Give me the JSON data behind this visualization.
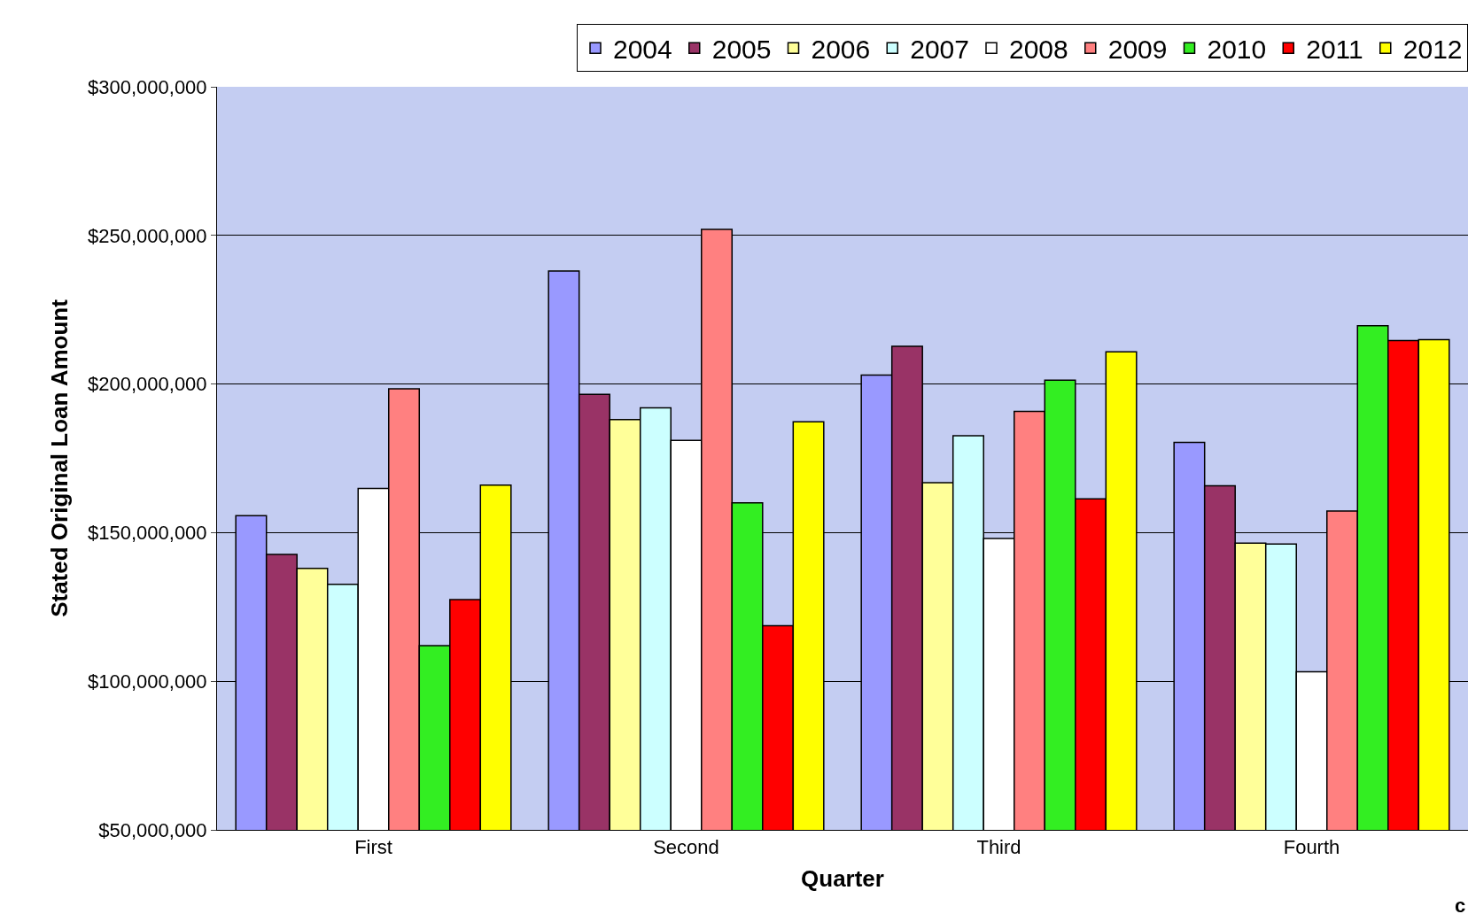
{
  "chart_data": {
    "type": "bar",
    "xlabel": "Quarter",
    "ylabel": "Stated Original Loan Amount",
    "categories": [
      "First",
      "Second",
      "Third",
      "Fourth"
    ],
    "series": [
      {
        "name": "2004",
        "color": "#9999ff",
        "values": [
          155700000,
          238000000,
          203000000,
          180400000
        ]
      },
      {
        "name": "2005",
        "color": "#993366",
        "values": [
          142700000,
          196500000,
          212700000,
          165800000
        ]
      },
      {
        "name": "2006",
        "color": "#ffff99",
        "values": [
          138000000,
          188000000,
          166800000,
          146500000
        ]
      },
      {
        "name": "2007",
        "color": "#ccffff",
        "values": [
          132600000,
          192000000,
          182600000,
          146200000
        ]
      },
      {
        "name": "2008",
        "color": "#ffffff",
        "values": [
          164900000,
          181000000,
          148000000,
          103200000
        ]
      },
      {
        "name": "2009",
        "color": "#ff8080",
        "values": [
          198400000,
          252000000,
          190800000,
          157300000
        ]
      },
      {
        "name": "2010",
        "color": "#33ee22",
        "values": [
          112000000,
          160000000,
          201300000,
          219600000
        ]
      },
      {
        "name": "2011",
        "color": "#ff0000",
        "values": [
          127500000,
          118700000,
          161400000,
          214600000
        ]
      },
      {
        "name": "2012",
        "color": "#ffff00",
        "values": [
          166000000,
          187300000,
          210800000,
          214900000
        ]
      }
    ],
    "ylim": [
      50000000,
      300000000
    ],
    "yticks": [
      {
        "value": 50000000,
        "label": "$50,000,000"
      },
      {
        "value": 100000000,
        "label": "$100,000,000"
      },
      {
        "value": 150000000,
        "label": "$150,000,000"
      },
      {
        "value": 200000000,
        "label": "$200,000,000"
      },
      {
        "value": 250000000,
        "label": "$250,000,000"
      },
      {
        "value": 300000000,
        "label": "$300,000,000"
      }
    ],
    "grid": "y",
    "legend": "top right",
    "annotations": [
      "c"
    ]
  }
}
